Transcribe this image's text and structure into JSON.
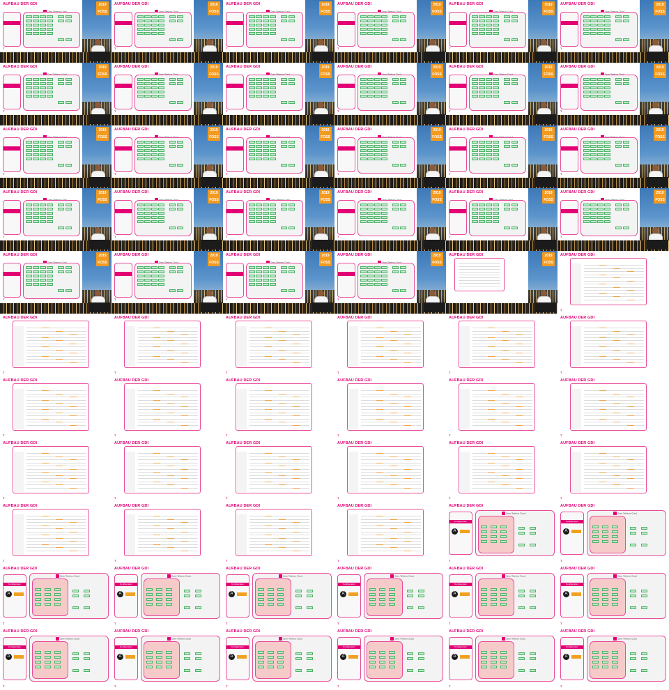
{
  "presentation": {
    "slide_title": "AUFBAU DER GDI",
    "cloud_label": "Open Telekom Cloud",
    "event_badge_year": "2019",
    "event_badge_name": "FOSS",
    "config_label": "Konfiguration",
    "brand": "T"
  },
  "grid": {
    "columns": 6,
    "rows": 11
  },
  "tiles": [
    {
      "style": "camera"
    },
    {
      "style": "camera"
    },
    {
      "style": "camera"
    },
    {
      "style": "camera"
    },
    {
      "style": "camera"
    },
    {
      "style": "camera"
    },
    {
      "style": "camera"
    },
    {
      "style": "camera"
    },
    {
      "style": "camera"
    },
    {
      "style": "camera"
    },
    {
      "style": "camera"
    },
    {
      "style": "camera"
    },
    {
      "style": "camera"
    },
    {
      "style": "camera"
    },
    {
      "style": "camera"
    },
    {
      "style": "camera"
    },
    {
      "style": "camera"
    },
    {
      "style": "camera"
    },
    {
      "style": "camera"
    },
    {
      "style": "camera"
    },
    {
      "style": "camera"
    },
    {
      "style": "camera"
    },
    {
      "style": "camera"
    },
    {
      "style": "camera"
    },
    {
      "style": "camera"
    },
    {
      "style": "camera"
    },
    {
      "style": "camera"
    },
    {
      "style": "camera"
    },
    {
      "style": "camera-doc"
    },
    {
      "style": "doc"
    },
    {
      "style": "doc"
    },
    {
      "style": "doc"
    },
    {
      "style": "doc"
    },
    {
      "style": "doc"
    },
    {
      "style": "doc"
    },
    {
      "style": "doc"
    },
    {
      "style": "doc"
    },
    {
      "style": "doc"
    },
    {
      "style": "doc"
    },
    {
      "style": "doc"
    },
    {
      "style": "doc"
    },
    {
      "style": "doc"
    },
    {
      "style": "doc"
    },
    {
      "style": "doc"
    },
    {
      "style": "doc"
    },
    {
      "style": "doc"
    },
    {
      "style": "doc"
    },
    {
      "style": "doc"
    },
    {
      "style": "doc"
    },
    {
      "style": "doc"
    },
    {
      "style": "doc"
    },
    {
      "style": "doc"
    },
    {
      "style": "redgrid"
    },
    {
      "style": "redgrid"
    },
    {
      "style": "redgrid"
    },
    {
      "style": "redgrid"
    },
    {
      "style": "redgrid"
    },
    {
      "style": "redgrid"
    },
    {
      "style": "redgrid"
    },
    {
      "style": "redgrid"
    },
    {
      "style": "redgrid"
    },
    {
      "style": "redgrid"
    },
    {
      "style": "redgrid"
    },
    {
      "style": "redgrid"
    },
    {
      "style": "redgrid"
    },
    {
      "style": "redgrid"
    }
  ],
  "colors": {
    "magenta": "#e20074",
    "green_box": "#bfe8c9",
    "red_panel": "#f7caca",
    "orange": "#f2a01f"
  }
}
